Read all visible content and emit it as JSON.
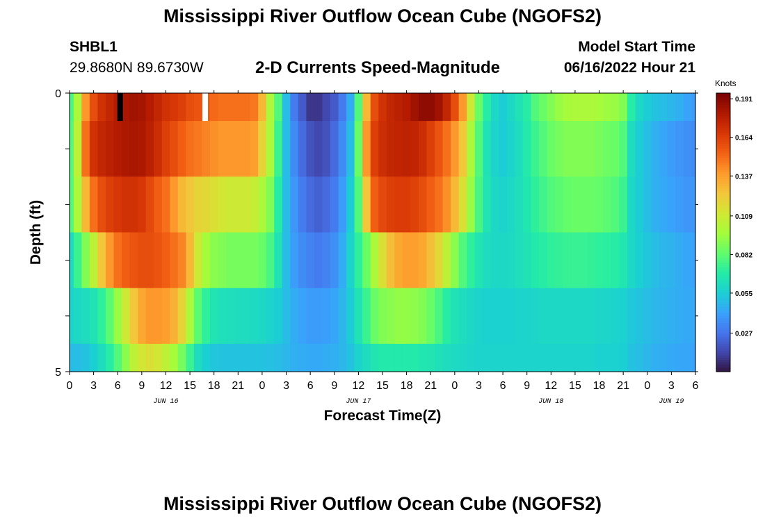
{
  "title": "Mississippi River Outflow Ocean Cube (NGOFS2)",
  "title_repeat": "Mississippi River Outflow Ocean Cube (NGOFS2)",
  "station": {
    "id": "SHBL1",
    "coords": "29.8680N  89.6730W"
  },
  "subtitle": "2-D Currents Speed-Magnitude",
  "model_start": {
    "label": "Model Start Time",
    "value": "06/16/2022 Hour 21"
  },
  "chart_data": {
    "type": "heatmap",
    "title": "2-D Currents Speed-Magnitude",
    "xlabel": "Forecast Time(Z)",
    "ylabel": "Depth (ft)",
    "x_range_hours": [
      0,
      78
    ],
    "x_start": "06/16/2022 00Z",
    "x_tick_labels": [
      "0",
      "3",
      "6",
      "9",
      "12",
      "15",
      "18",
      "21",
      "0",
      "3",
      "6",
      "9",
      "12",
      "15",
      "18",
      "21",
      "0",
      "3",
      "6",
      "9",
      "12",
      "15",
      "18",
      "21",
      "0",
      "3",
      "6"
    ],
    "date_labels": [
      {
        "label": "JUN 16",
        "hour": 12
      },
      {
        "label": "JUN 17",
        "hour": 36
      },
      {
        "label": "JUN 18",
        "hour": 60
      },
      {
        "label": "JUN 19",
        "hour": 75
      }
    ],
    "y_tick_labels": [
      "0",
      "5"
    ],
    "ylim": [
      0,
      5
    ],
    "depth_layers": [
      0,
      1,
      2,
      3,
      4,
      4.75
    ],
    "layer_bounds": [
      0,
      0.5,
      1.5,
      2.5,
      3.5,
      4.5,
      5
    ],
    "hours": [
      0,
      1,
      2,
      3,
      4,
      5,
      6,
      7,
      8,
      9,
      10,
      11,
      12,
      13,
      14,
      15,
      16,
      17,
      18,
      19,
      20,
      21,
      22,
      23,
      24,
      25,
      26,
      27,
      28,
      29,
      30,
      31,
      32,
      33,
      34,
      35,
      36,
      37,
      38,
      39,
      40,
      41,
      42,
      43,
      44,
      45,
      46,
      47,
      48,
      49,
      50,
      51,
      52,
      53,
      54,
      55,
      56,
      57,
      58,
      59,
      60,
      61,
      62,
      63,
      64,
      65,
      66,
      67,
      68,
      69,
      70,
      71,
      72,
      73,
      74,
      75,
      76,
      77,
      78
    ],
    "values": [
      [
        0.078,
        0.1,
        0.14,
        0.16,
        0.17,
        0.175,
        0.18,
        0.183,
        0.185,
        0.184,
        0.18,
        0.175,
        0.17,
        0.168,
        0.165,
        0.16,
        0.158,
        0.155,
        0.152,
        0.15,
        0.15,
        0.15,
        0.15,
        0.148,
        0.13,
        0.1,
        0.08,
        0.05,
        0.03,
        0.02,
        0.01,
        0.01,
        0.015,
        0.02,
        0.03,
        0.045,
        0.08,
        0.13,
        0.16,
        0.17,
        0.175,
        0.178,
        0.18,
        0.185,
        0.19,
        0.19,
        0.185,
        0.175,
        0.16,
        0.14,
        0.11,
        0.085,
        0.07,
        0.06,
        0.055,
        0.06,
        0.065,
        0.07,
        0.08,
        0.085,
        0.09,
        0.095,
        0.098,
        0.1,
        0.1,
        0.1,
        0.098,
        0.096,
        0.095,
        0.09,
        0.07,
        0.06,
        0.055,
        0.052,
        0.05,
        0.048,
        0.046,
        0.042,
        0.04
      ],
      [
        0.08,
        0.105,
        0.15,
        0.17,
        0.175,
        0.178,
        0.18,
        0.182,
        0.183,
        0.182,
        0.178,
        0.172,
        0.165,
        0.16,
        0.155,
        0.15,
        0.148,
        0.145,
        0.142,
        0.14,
        0.14,
        0.14,
        0.14,
        0.138,
        0.12,
        0.1,
        0.075,
        0.05,
        0.035,
        0.025,
        0.018,
        0.015,
        0.018,
        0.025,
        0.035,
        0.05,
        0.085,
        0.14,
        0.165,
        0.172,
        0.175,
        0.176,
        0.177,
        0.176,
        0.172,
        0.165,
        0.158,
        0.15,
        0.14,
        0.125,
        0.1,
        0.08,
        0.065,
        0.058,
        0.055,
        0.058,
        0.062,
        0.068,
        0.075,
        0.08,
        0.085,
        0.088,
        0.09,
        0.09,
        0.09,
        0.09,
        0.088,
        0.086,
        0.085,
        0.08,
        0.062,
        0.055,
        0.05,
        0.046,
        0.043,
        0.04,
        0.038,
        0.036,
        0.035
      ],
      [
        0.08,
        0.1,
        0.13,
        0.15,
        0.16,
        0.165,
        0.168,
        0.17,
        0.17,
        0.168,
        0.162,
        0.155,
        0.15,
        0.14,
        0.13,
        0.125,
        0.12,
        0.118,
        0.115,
        0.112,
        0.11,
        0.11,
        0.11,
        0.108,
        0.1,
        0.09,
        0.07,
        0.05,
        0.038,
        0.03,
        0.025,
        0.022,
        0.025,
        0.03,
        0.04,
        0.055,
        0.08,
        0.125,
        0.155,
        0.162,
        0.165,
        0.166,
        0.166,
        0.164,
        0.16,
        0.155,
        0.15,
        0.142,
        0.13,
        0.115,
        0.095,
        0.078,
        0.066,
        0.06,
        0.058,
        0.06,
        0.063,
        0.067,
        0.072,
        0.076,
        0.08,
        0.082,
        0.084,
        0.085,
        0.085,
        0.085,
        0.084,
        0.082,
        0.08,
        0.075,
        0.06,
        0.055,
        0.05,
        0.046,
        0.044,
        0.042,
        0.04,
        0.038,
        0.038
      ],
      [
        0.06,
        0.075,
        0.09,
        0.105,
        0.125,
        0.14,
        0.15,
        0.155,
        0.158,
        0.16,
        0.16,
        0.158,
        0.155,
        0.15,
        0.145,
        0.13,
        0.11,
        0.098,
        0.092,
        0.09,
        0.088,
        0.088,
        0.088,
        0.088,
        0.085,
        0.078,
        0.065,
        0.05,
        0.04,
        0.035,
        0.032,
        0.03,
        0.032,
        0.036,
        0.045,
        0.058,
        0.072,
        0.085,
        0.1,
        0.115,
        0.128,
        0.135,
        0.138,
        0.138,
        0.135,
        0.128,
        0.118,
        0.105,
        0.092,
        0.08,
        0.072,
        0.066,
        0.062,
        0.06,
        0.06,
        0.061,
        0.063,
        0.065,
        0.068,
        0.07,
        0.072,
        0.073,
        0.074,
        0.074,
        0.074,
        0.073,
        0.072,
        0.071,
        0.07,
        0.067,
        0.06,
        0.056,
        0.053,
        0.05,
        0.048,
        0.047,
        0.045,
        0.043,
        0.042
      ],
      [
        0.058,
        0.06,
        0.062,
        0.065,
        0.072,
        0.082,
        0.095,
        0.11,
        0.125,
        0.135,
        0.14,
        0.14,
        0.138,
        0.132,
        0.12,
        0.1,
        0.082,
        0.072,
        0.066,
        0.064,
        0.063,
        0.062,
        0.062,
        0.061,
        0.06,
        0.058,
        0.055,
        0.05,
        0.045,
        0.042,
        0.04,
        0.04,
        0.041,
        0.043,
        0.048,
        0.055,
        0.065,
        0.075,
        0.085,
        0.09,
        0.092,
        0.094,
        0.094,
        0.093,
        0.09,
        0.085,
        0.078,
        0.07,
        0.065,
        0.062,
        0.06,
        0.058,
        0.057,
        0.057,
        0.057,
        0.057,
        0.058,
        0.058,
        0.059,
        0.06,
        0.06,
        0.06,
        0.06,
        0.06,
        0.06,
        0.06,
        0.059,
        0.059,
        0.058,
        0.057,
        0.054,
        0.052,
        0.05,
        0.048,
        0.047,
        0.046,
        0.045,
        0.044,
        0.044
      ],
      [
        0.05,
        0.05,
        0.052,
        0.056,
        0.062,
        0.07,
        0.08,
        0.092,
        0.105,
        0.112,
        0.115,
        0.112,
        0.105,
        0.098,
        0.088,
        0.075,
        0.062,
        0.056,
        0.053,
        0.052,
        0.052,
        0.052,
        0.052,
        0.052,
        0.052,
        0.051,
        0.05,
        0.048,
        0.046,
        0.045,
        0.044,
        0.044,
        0.045,
        0.046,
        0.048,
        0.052,
        0.058,
        0.062,
        0.066,
        0.068,
        0.068,
        0.068,
        0.068,
        0.068,
        0.067,
        0.066,
        0.064,
        0.062,
        0.061,
        0.06,
        0.059,
        0.058,
        0.058,
        0.058,
        0.058,
        0.058,
        0.058,
        0.058,
        0.058,
        0.058,
        0.058,
        0.058,
        0.058,
        0.058,
        0.058,
        0.058,
        0.057,
        0.057,
        0.057,
        0.056,
        0.052,
        0.05,
        0.048,
        0.046,
        0.045,
        0.044,
        0.043,
        0.043,
        0.042
      ]
    ],
    "missing_marks": [
      {
        "hour": 6.3,
        "depth_layer": 0,
        "color": "#000000",
        "note": "dark surface column"
      },
      {
        "hour": 16.9,
        "depth_layer": 0,
        "color": "#ffffff",
        "note": "white surface column"
      }
    ],
    "colorbar": {
      "label": "Knots",
      "min": 0.0,
      "max": 0.195,
      "ticks": [
        "0.191",
        "0.164",
        "0.137",
        "0.109",
        "0.082",
        "0.055",
        "0.027"
      ],
      "tick_values": [
        0.191,
        0.164,
        0.137,
        0.109,
        0.082,
        0.055,
        0.027
      ],
      "colormap": [
        "#30123b",
        "#4145ab",
        "#4675ed",
        "#39a2fc",
        "#1bcfd4",
        "#24eca6",
        "#61fc6c",
        "#a4fc3b",
        "#d1e834",
        "#f3c63a",
        "#fe9b2d",
        "#f36315",
        "#d93806",
        "#b11901",
        "#7a0402"
      ]
    }
  }
}
